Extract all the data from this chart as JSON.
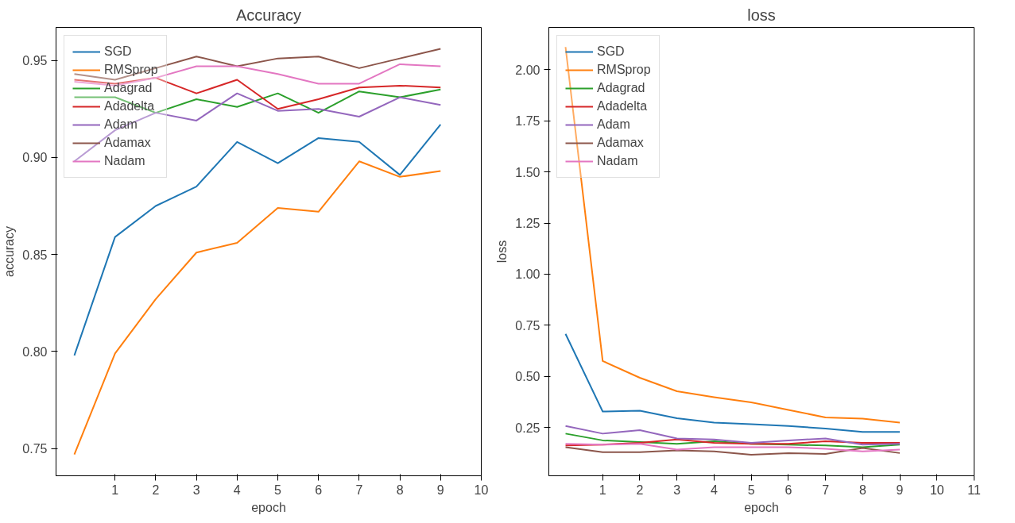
{
  "chart_data": [
    {
      "type": "line",
      "title": "Accuracy",
      "xlabel": "epoch",
      "ylabel": "accuracy",
      "x": [
        0,
        1,
        2,
        3,
        4,
        5,
        6,
        7,
        8,
        9
      ],
      "xlim": [
        -0.45,
        10
      ],
      "xticks": [
        1,
        2,
        3,
        4,
        5,
        6,
        7,
        8,
        9,
        10
      ],
      "ylim": [
        0.736,
        0.967
      ],
      "yticks": [
        {
          "value": 0.75,
          "label": "0.75"
        },
        {
          "value": 0.8,
          "label": "0.80"
        },
        {
          "value": 0.85,
          "label": "0.85"
        },
        {
          "value": 0.9,
          "label": "0.90"
        },
        {
          "value": 0.95,
          "label": "0.95"
        }
      ],
      "grid": false,
      "legend": "top left",
      "series": [
        {
          "name": "SGD",
          "color": "#1f77b4",
          "values": [
            0.798,
            0.859,
            0.875,
            0.885,
            0.908,
            0.897,
            0.91,
            0.908,
            0.891,
            0.917
          ]
        },
        {
          "name": "RMSprop",
          "color": "#ff7f0e",
          "values": [
            0.747,
            0.799,
            0.827,
            0.851,
            0.856,
            0.874,
            0.872,
            0.898,
            0.89,
            0.893
          ]
        },
        {
          "name": "Adagrad",
          "color": "#2ca02c",
          "values": [
            0.931,
            0.931,
            0.923,
            0.93,
            0.926,
            0.933,
            0.923,
            0.934,
            0.931,
            0.935
          ]
        },
        {
          "name": "Adadelta",
          "color": "#d62728",
          "values": [
            0.94,
            0.938,
            0.941,
            0.933,
            0.94,
            0.925,
            0.93,
            0.936,
            0.937,
            0.936
          ]
        },
        {
          "name": "Adam",
          "color": "#9467bd",
          "values": [
            0.898,
            0.914,
            0.923,
            0.919,
            0.933,
            0.924,
            0.925,
            0.921,
            0.931,
            0.927
          ]
        },
        {
          "name": "Adamax",
          "color": "#8c564b",
          "values": [
            0.943,
            0.94,
            0.946,
            0.952,
            0.947,
            0.951,
            0.952,
            0.946,
            0.951,
            0.956
          ]
        },
        {
          "name": "Nadam",
          "color": "#e377c2",
          "values": [
            0.939,
            0.937,
            0.941,
            0.947,
            0.947,
            0.943,
            0.938,
            0.938,
            0.948,
            0.947
          ]
        }
      ]
    },
    {
      "type": "line",
      "title": "loss",
      "xlabel": "epoch",
      "ylabel": "loss",
      "x": [
        0,
        1,
        2,
        3,
        4,
        5,
        6,
        7,
        8,
        9
      ],
      "xlim": [
        -0.45,
        11
      ],
      "xticks": [
        1,
        2,
        3,
        4,
        5,
        6,
        7,
        8,
        9,
        10,
        11
      ],
      "ylim": [
        0.015,
        2.206
      ],
      "yticks": [
        {
          "value": 0.25,
          "label": "0.25"
        },
        {
          "value": 0.5,
          "label": "0.50"
        },
        {
          "value": 0.75,
          "label": "0.75"
        },
        {
          "value": 1.0,
          "label": "1.00"
        },
        {
          "value": 1.25,
          "label": "1.25"
        },
        {
          "value": 1.5,
          "label": "1.50"
        },
        {
          "value": 1.75,
          "label": "1.75"
        },
        {
          "value": 2.0,
          "label": "2.00"
        }
      ],
      "grid": false,
      "legend": "top left",
      "series": [
        {
          "name": "SGD",
          "color": "#1f77b4",
          "values": [
            0.708,
            0.329,
            0.333,
            0.296,
            0.275,
            0.267,
            0.258,
            0.246,
            0.229,
            0.229
          ]
        },
        {
          "name": "RMSprop",
          "color": "#ff7f0e",
          "values": [
            2.11,
            0.576,
            0.494,
            0.428,
            0.399,
            0.374,
            0.337,
            0.3,
            0.294,
            0.275
          ]
        },
        {
          "name": "Adagrad",
          "color": "#2ca02c",
          "values": [
            0.221,
            0.188,
            0.18,
            0.171,
            0.184,
            0.171,
            0.167,
            0.163,
            0.155,
            0.167
          ]
        },
        {
          "name": "Adadelta",
          "color": "#d62728",
          "values": [
            0.163,
            0.167,
            0.176,
            0.192,
            0.176,
            0.171,
            0.171,
            0.184,
            0.176,
            0.176
          ]
        },
        {
          "name": "Adam",
          "color": "#9467bd",
          "values": [
            0.258,
            0.221,
            0.238,
            0.197,
            0.192,
            0.176,
            0.188,
            0.197,
            0.167,
            0.171
          ]
        },
        {
          "name": "Adamax",
          "color": "#8c564b",
          "values": [
            0.155,
            0.13,
            0.13,
            0.139,
            0.134,
            0.118,
            0.126,
            0.122,
            0.151,
            0.126
          ]
        },
        {
          "name": "Nadam",
          "color": "#e377c2",
          "values": [
            0.171,
            0.167,
            0.171,
            0.143,
            0.155,
            0.155,
            0.155,
            0.147,
            0.134,
            0.143
          ]
        }
      ]
    }
  ]
}
